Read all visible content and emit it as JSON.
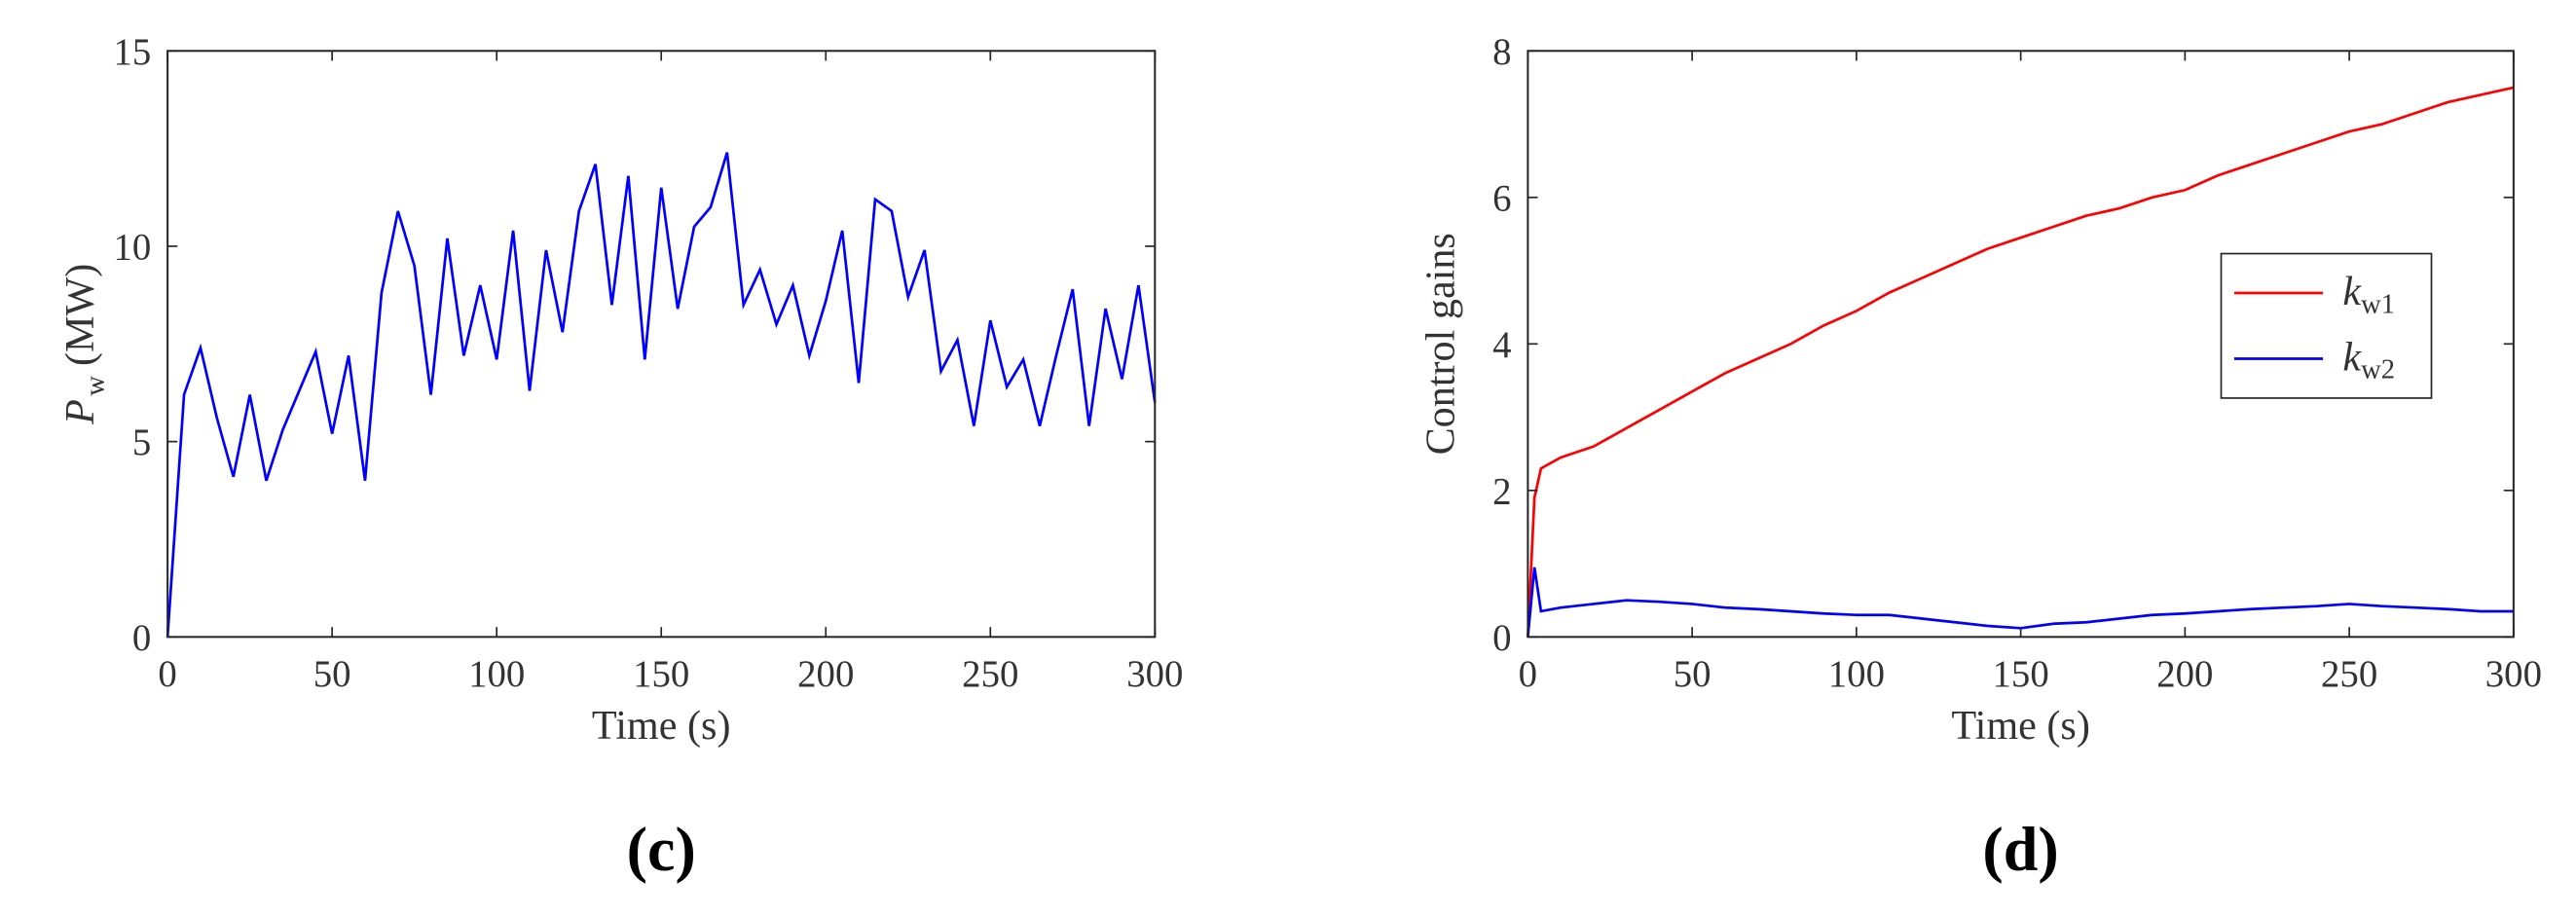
{
  "chart_data": [
    {
      "type": "line",
      "panel_label": "(c)",
      "xlabel": "Time (s)",
      "ylabel": "P",
      "ylabel_subscript": "w",
      "ylabel_unit": "(MW)",
      "xlim": [
        0,
        300
      ],
      "xticks": [
        0,
        50,
        100,
        150,
        200,
        250,
        300
      ],
      "ylim": [
        0,
        15
      ],
      "yticks": [
        0,
        5,
        10,
        15
      ],
      "color": "#0000ff",
      "x": [
        0,
        5,
        10,
        15,
        20,
        25,
        30,
        35,
        40,
        45,
        50,
        55,
        60,
        65,
        70,
        75,
        80,
        85,
        90,
        95,
        100,
        105,
        110,
        115,
        120,
        125,
        130,
        135,
        140,
        145,
        150,
        155,
        160,
        165,
        170,
        175,
        180,
        185,
        190,
        195,
        200,
        205,
        210,
        215,
        220,
        225,
        230,
        235,
        240,
        245,
        250,
        255,
        260,
        265,
        270,
        275,
        280,
        285,
        290,
        295,
        300
      ],
      "values": [
        0,
        6.2,
        7.4,
        5.6,
        4.1,
        6.2,
        4.0,
        5.3,
        6.3,
        7.3,
        5.2,
        7.2,
        4.0,
        8.8,
        10.9,
        9.5,
        6.2,
        10.2,
        7.2,
        9.0,
        7.1,
        10.4,
        6.3,
        9.9,
        7.8,
        10.9,
        12.1,
        8.5,
        11.8,
        7.1,
        11.5,
        8.4,
        10.5,
        11.0,
        12.4,
        8.5,
        9.4,
        8.0,
        9.0,
        7.2,
        8.6,
        10.4,
        6.5,
        11.2,
        10.9,
        8.7,
        9.9,
        6.8,
        7.6,
        5.4,
        8.1,
        6.4,
        7.1,
        5.4,
        7.2,
        8.9,
        5.4,
        8.4,
        6.6,
        9.0,
        6.0
      ]
    },
    {
      "type": "line",
      "panel_label": "(d)",
      "xlabel": "Time (s)",
      "ylabel": "Control gains",
      "xlim": [
        0,
        300
      ],
      "xticks": [
        0,
        50,
        100,
        150,
        200,
        250,
        300
      ],
      "ylim": [
        0,
        8
      ],
      "yticks": [
        0,
        2,
        4,
        6,
        8
      ],
      "legend": "right",
      "x": [
        0,
        2,
        4,
        10,
        20,
        30,
        40,
        50,
        60,
        70,
        80,
        90,
        100,
        110,
        120,
        130,
        140,
        150,
        160,
        170,
        180,
        190,
        200,
        210,
        220,
        230,
        240,
        250,
        260,
        270,
        280,
        290,
        300
      ],
      "series": [
        {
          "name": "k",
          "name_subscript": "w1",
          "color": "#ff0000",
          "values": [
            0,
            1.9,
            2.3,
            2.45,
            2.6,
            2.85,
            3.1,
            3.35,
            3.6,
            3.8,
            4.0,
            4.25,
            4.45,
            4.7,
            4.9,
            5.1,
            5.3,
            5.45,
            5.6,
            5.75,
            5.85,
            6.0,
            6.1,
            6.3,
            6.45,
            6.6,
            6.75,
            6.9,
            7.0,
            7.15,
            7.3,
            7.4,
            7.5
          ]
        },
        {
          "name": "k",
          "name_subscript": "w2",
          "color": "#0000ff",
          "values": [
            0,
            0.95,
            0.35,
            0.4,
            0.45,
            0.5,
            0.48,
            0.45,
            0.4,
            0.38,
            0.35,
            0.32,
            0.3,
            0.3,
            0.25,
            0.2,
            0.15,
            0.12,
            0.18,
            0.2,
            0.25,
            0.3,
            0.32,
            0.35,
            0.38,
            0.4,
            0.42,
            0.45,
            0.42,
            0.4,
            0.38,
            0.35,
            0.35
          ]
        }
      ]
    }
  ]
}
